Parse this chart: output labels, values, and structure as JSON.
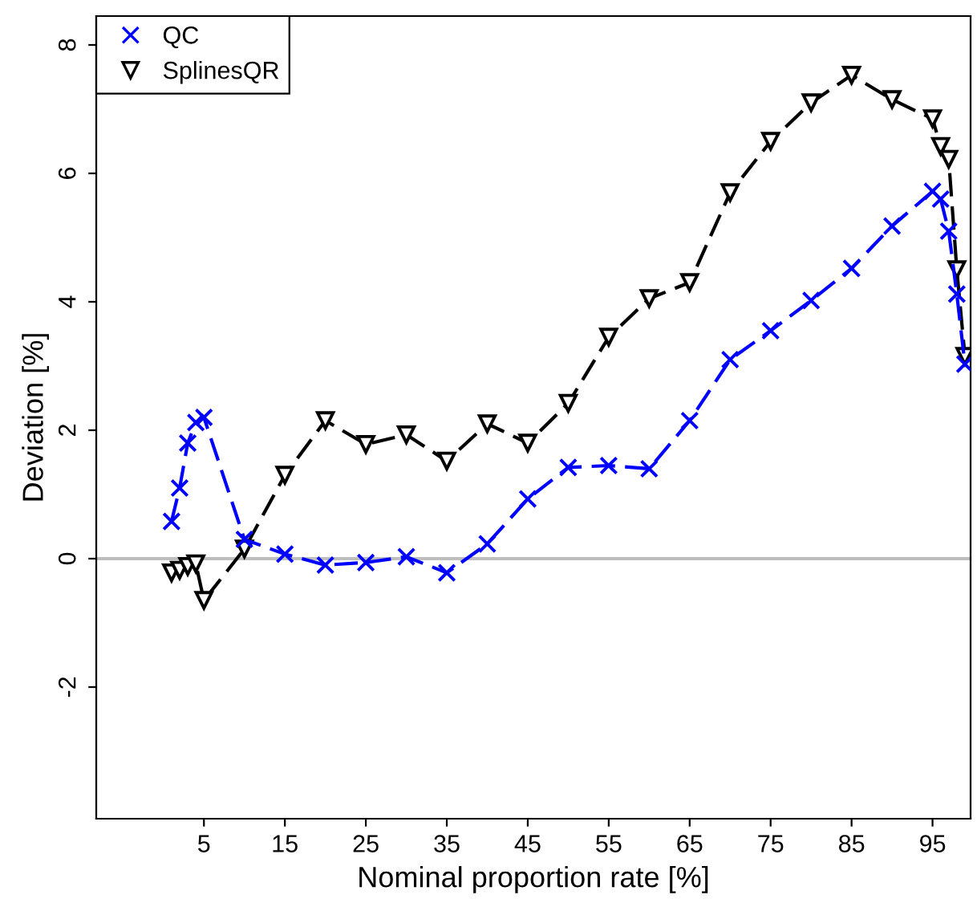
{
  "chart_data": {
    "type": "line",
    "xlabel": "Nominal proportion rate [%]",
    "ylabel": "Deviation [%]",
    "xlim": [
      -8.3,
      99.7
    ],
    "ylim": [
      -4.05,
      8.45
    ],
    "xticks": [
      5,
      15,
      25,
      35,
      45,
      55,
      65,
      75,
      85,
      95
    ],
    "yticks": [
      -2,
      0,
      2,
      4,
      6,
      8
    ],
    "grid": false,
    "legend": "top left",
    "line_style": "dashed",
    "ref_lines": [
      {
        "axis": "y",
        "value": 0,
        "color": "#bebebe"
      }
    ],
    "series": [
      {
        "name": "QC",
        "color": "#0000ff",
        "marker": "cross",
        "x": [
          1,
          2,
          3,
          4,
          5,
          10,
          15,
          20,
          25,
          30,
          35,
          40,
          45,
          50,
          55,
          60,
          65,
          70,
          75,
          80,
          85,
          90,
          95,
          96,
          97,
          98,
          99
        ],
        "values": [
          0.58,
          1.1,
          1.8,
          2.12,
          2.2,
          0.3,
          0.07,
          -0.1,
          -0.06,
          0.03,
          -0.22,
          0.23,
          0.93,
          1.42,
          1.45,
          1.4,
          2.15,
          3.1,
          3.55,
          4.02,
          4.52,
          5.18,
          5.72,
          5.6,
          5.1,
          4.12,
          3.03
        ]
      },
      {
        "name": "SplinesQR",
        "color": "#000000",
        "marker": "triangle",
        "x": [
          1,
          2,
          3,
          4,
          5,
          10,
          15,
          20,
          25,
          30,
          35,
          40,
          45,
          50,
          55,
          60,
          65,
          70,
          75,
          80,
          85,
          90,
          95,
          96,
          97,
          98,
          99
        ],
        "values": [
          -0.22,
          -0.18,
          -0.12,
          -0.08,
          -0.65,
          0.15,
          1.3,
          2.15,
          1.78,
          1.93,
          1.52,
          2.1,
          1.8,
          2.42,
          3.45,
          4.05,
          4.3,
          5.7,
          6.5,
          7.1,
          7.53,
          7.15,
          6.85,
          6.42,
          6.22,
          4.5,
          3.15
        ]
      }
    ]
  }
}
